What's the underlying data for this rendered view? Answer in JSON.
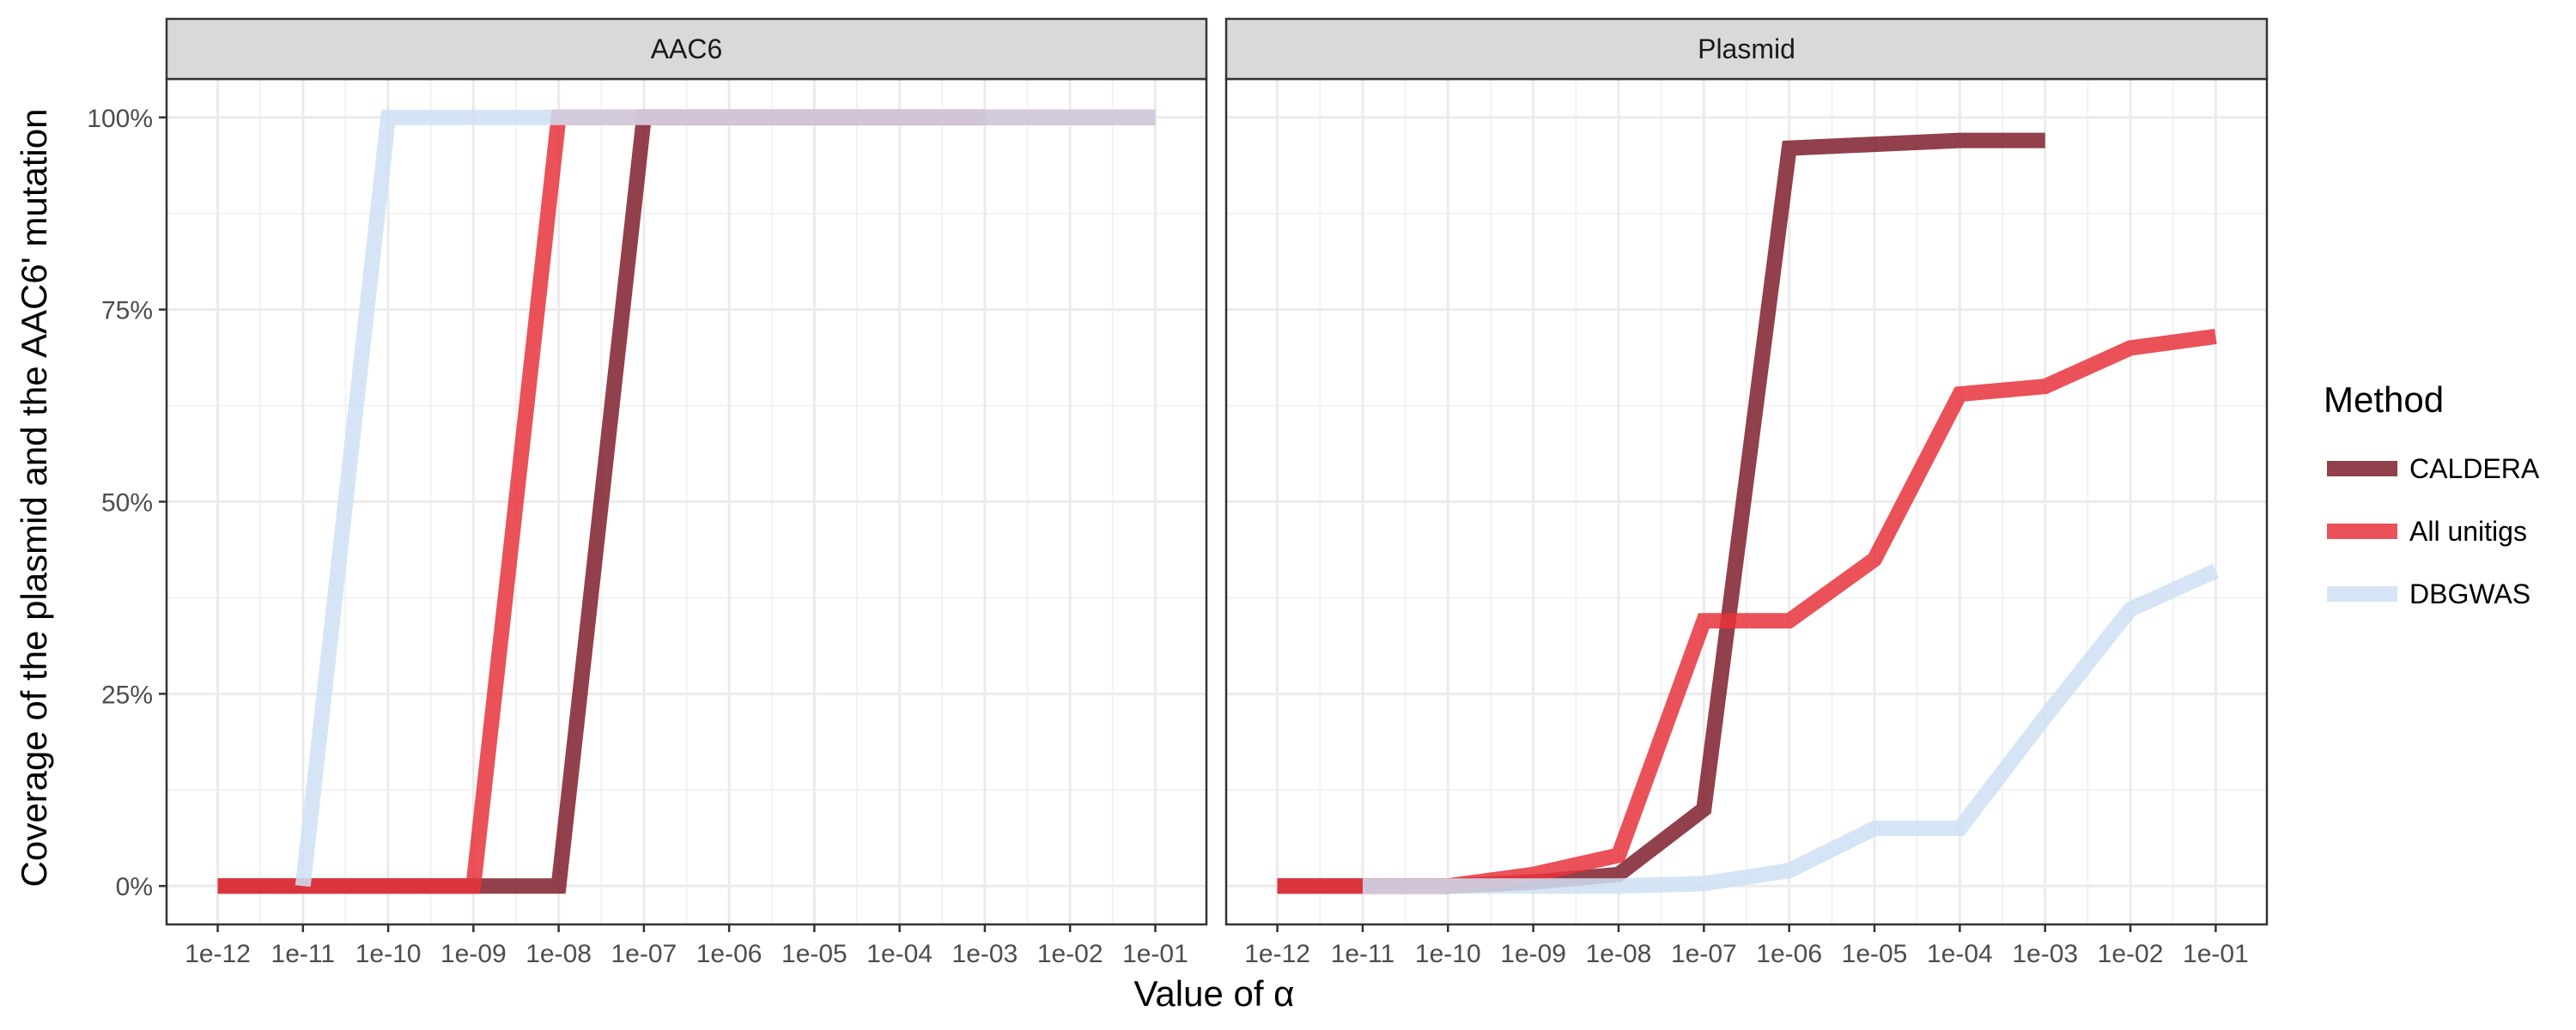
{
  "chart_data": {
    "type": "line",
    "ylabel": "Coverage of the plasmid and the AAC6' mutation",
    "xlabel": "Value of α",
    "x": [
      "1e-12",
      "1e-11",
      "1e-10",
      "1e-09",
      "1e-08",
      "1e-07",
      "1e-06",
      "1e-05",
      "1e-04",
      "1e-03",
      "1e-02",
      "1e-01"
    ],
    "ylim": [
      -5,
      105
    ],
    "yticks": [
      0,
      25,
      50,
      75,
      100
    ],
    "ytick_labels": [
      "0%",
      "25%",
      "50%",
      "75%",
      "100%"
    ],
    "grid": true,
    "legend": {
      "title": "Method",
      "position": "right",
      "entries": [
        "CALDERA",
        "All unitigs",
        "DBGWAS"
      ]
    },
    "colors": {
      "CALDERA": "#7f1f2b",
      "All unitigs": "#e8333b",
      "DBGWAS": "#cfe0f3"
    },
    "panels": [
      {
        "title": "AAC6",
        "series": [
          {
            "name": "CALDERA",
            "values": [
              0,
              0,
              0,
              0,
              0,
              100,
              100,
              100,
              100,
              100,
              null,
              null
            ]
          },
          {
            "name": "All unitigs",
            "values": [
              0,
              0,
              0,
              0,
              100,
              100,
              100,
              100,
              100,
              100,
              100,
              100
            ]
          },
          {
            "name": "DBGWAS",
            "values": [
              null,
              0,
              100,
              100,
              100,
              100,
              100,
              100,
              100,
              100,
              100,
              100
            ]
          }
        ]
      },
      {
        "title": "Plasmid",
        "series": [
          {
            "name": "CALDERA",
            "values": [
              0,
              0,
              0,
              0.5,
              1.5,
              10,
              96,
              96.5,
              97,
              97,
              null,
              null
            ]
          },
          {
            "name": "All unitigs",
            "values": [
              0,
              0,
              0,
              1.5,
              4,
              34.5,
              34.5,
              42.5,
              64,
              65,
              70,
              71.5
            ]
          },
          {
            "name": "DBGWAS",
            "values": [
              null,
              0,
              0,
              0,
              0,
              0.3,
              2,
              7.5,
              7.5,
              22,
              36,
              41
            ]
          }
        ]
      }
    ]
  }
}
